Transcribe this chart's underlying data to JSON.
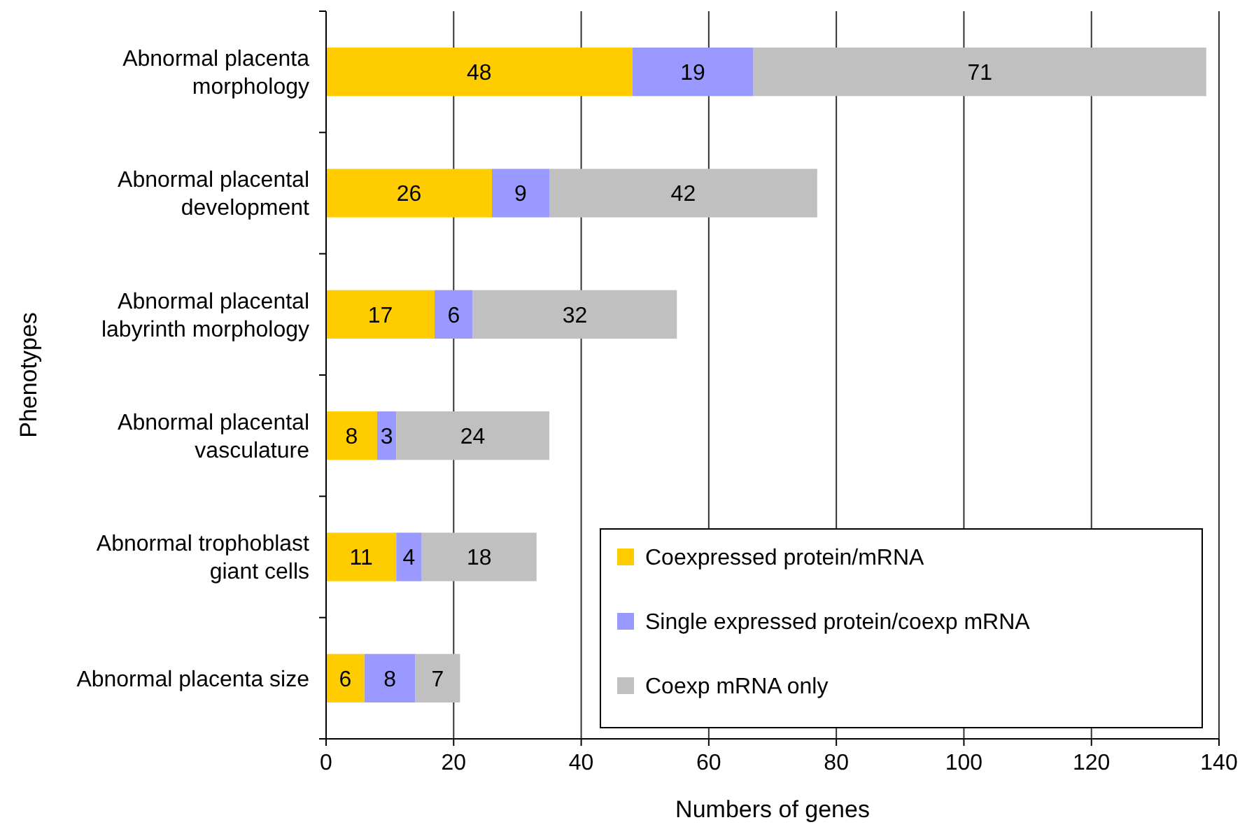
{
  "chart_data": {
    "type": "bar",
    "orientation": "horizontal",
    "stacked": true,
    "xlabel": "Numbers of genes",
    "ylabel": "Phenotypes",
    "categories": [
      "Abnormal placenta morphology",
      "Abnormal placental development",
      "Abnormal placental labyrinth morphology",
      "Abnormal placental vasculature",
      "Abnormal trophoblast giant cells",
      "Abnormal placenta size"
    ],
    "series": [
      {
        "name": "Coexpressed protein/mRNA",
        "color": "#ffcc00",
        "values": [
          48,
          26,
          17,
          8,
          11,
          6
        ]
      },
      {
        "name": "Single expressed protein/coexp mRNA",
        "color": "#9999ff",
        "values": [
          19,
          9,
          6,
          3,
          4,
          8
        ]
      },
      {
        "name": "Coexp mRNA only",
        "color": "#c0c0c0",
        "values": [
          71,
          42,
          32,
          24,
          18,
          7
        ]
      }
    ],
    "xlim": [
      0,
      140
    ],
    "xticks": [
      0,
      20,
      40,
      60,
      80,
      100,
      120,
      140
    ],
    "grid": "x",
    "legend": "bottom right",
    "data_labels": true
  }
}
